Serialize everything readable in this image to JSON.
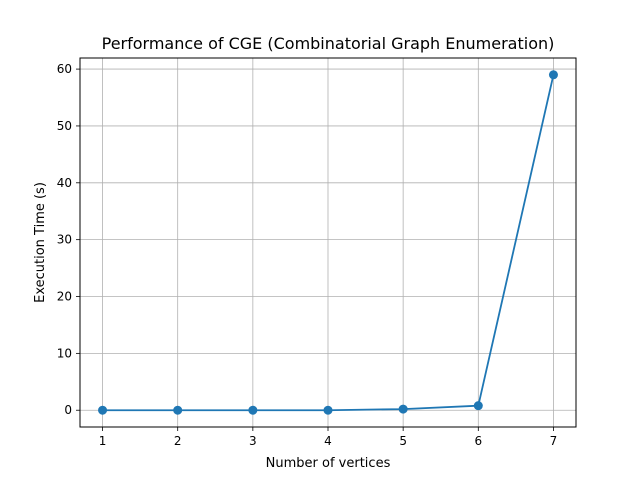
{
  "chart_data": {
    "type": "line",
    "title": "Performance of CGE (Combinatorial Graph Enumeration)",
    "xlabel": "Number of vertices",
    "ylabel": "Execution Time (s)",
    "x": [
      1,
      2,
      3,
      4,
      5,
      6,
      7
    ],
    "series": [
      {
        "values": [
          0.0,
          0.0,
          0.0,
          0.0,
          0.2,
          0.8,
          59.0
        ],
        "color": "#1f77b4",
        "marker": "circle"
      }
    ],
    "xticks": [
      "1",
      "2",
      "3",
      "4",
      "5",
      "6",
      "7"
    ],
    "yticks": [
      "0",
      "10",
      "20",
      "30",
      "40",
      "50",
      "60"
    ],
    "xlim": [
      0.7,
      7.3
    ],
    "ylim": [
      -2.95,
      61.95
    ],
    "grid": true,
    "legend": "none"
  }
}
